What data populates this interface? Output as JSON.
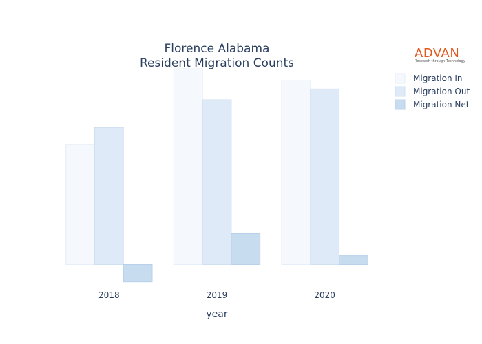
{
  "logo": {
    "name": "ADVAN",
    "tagline": "Research through Technology",
    "color": "#e2571d"
  },
  "chart_data": {
    "type": "bar",
    "title": [
      "Florence Alabama",
      "Resident Migration Counts"
    ],
    "xlabel": "year",
    "ylabel": "",
    "categories": [
      "2018",
      "2019",
      "2020"
    ],
    "ylim": [
      -60,
      620
    ],
    "grid": false,
    "legend_position": "top-right",
    "series": [
      {
        "name": "Migration In",
        "values": [
          380,
          620,
          584
        ],
        "color": "#f5f9fd",
        "stroke": "#e6eef7"
      },
      {
        "name": "Migration Out",
        "values": [
          434,
          522,
          556
        ],
        "color": "#deeaf7",
        "stroke": "#cfdff1"
      },
      {
        "name": "Migration Net",
        "values": [
          -55,
          98,
          28
        ],
        "color": "#c8dcf0",
        "stroke": "#b8d0ea"
      }
    ]
  }
}
